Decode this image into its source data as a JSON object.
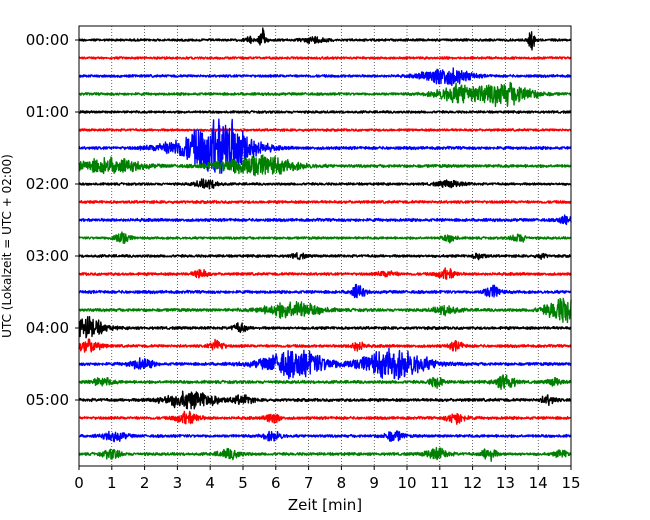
{
  "chart_data": {
    "type": "line",
    "title": "",
    "xlabel": "Zeit  [min]",
    "ylabel": "UTC (Lokalzeit = UTC + 02:00)",
    "xlim": [
      0,
      15
    ],
    "x_ticks": [
      "0",
      "1",
      "2",
      "3",
      "4",
      "5",
      "6",
      "7",
      "8",
      "9",
      "10",
      "11",
      "12",
      "13",
      "14",
      "15"
    ],
    "y_tick_labels": [
      "00:00",
      "01:00",
      "02:00",
      "03:00",
      "04:00",
      "05:00"
    ],
    "grid": "vertical dotted every minute",
    "legend": "none",
    "trace_interval_min": 15,
    "trace_colors": [
      "#000000",
      "#ff0000",
      "#0000ff",
      "#008000"
    ],
    "start_utc": "00:00",
    "traces": [
      {
        "start": "00:00",
        "color": "black",
        "noise": 1.3,
        "events": [
          {
            "t": 5.2,
            "amp": 3.5,
            "dur": 0.2
          },
          {
            "t": 5.6,
            "amp": 12,
            "dur": 0.15
          },
          {
            "t": 7.2,
            "amp": 3.5,
            "dur": 0.5
          },
          {
            "t": 13.8,
            "amp": 10,
            "dur": 0.15
          }
        ]
      },
      {
        "start": "00:15",
        "color": "red",
        "noise": 1.3,
        "events": []
      },
      {
        "start": "00:30",
        "color": "blue",
        "noise": 1.4,
        "events": [
          {
            "t": 11.2,
            "amp": 10,
            "dur": 1.0
          }
        ]
      },
      {
        "start": "00:45",
        "color": "green",
        "noise": 1.4,
        "events": [
          {
            "t": 11.6,
            "amp": 10,
            "dur": 1.0
          },
          {
            "t": 13.0,
            "amp": 12,
            "dur": 1.2
          }
        ]
      },
      {
        "start": "01:00",
        "color": "black",
        "noise": 1.3,
        "events": []
      },
      {
        "start": "01:15",
        "color": "red",
        "noise": 1.3,
        "events": []
      },
      {
        "start": "01:30",
        "color": "blue",
        "noise": 1.6,
        "events": [
          {
            "t": 4.3,
            "amp": 34,
            "dur": 1.4
          },
          {
            "t": 2.8,
            "amp": 4,
            "dur": 1.0
          }
        ]
      },
      {
        "start": "01:45",
        "color": "green",
        "noise": 1.6,
        "events": [
          {
            "t": 0.9,
            "amp": 8,
            "dur": 1.4
          },
          {
            "t": 5.4,
            "amp": 12,
            "dur": 1.6
          }
        ]
      },
      {
        "start": "02:00",
        "color": "black",
        "noise": 1.3,
        "events": [
          {
            "t": 3.9,
            "amp": 5,
            "dur": 0.5
          },
          {
            "t": 11.3,
            "amp": 3.5,
            "dur": 0.6
          }
        ]
      },
      {
        "start": "02:15",
        "color": "red",
        "noise": 1.5,
        "events": []
      },
      {
        "start": "02:30",
        "color": "blue",
        "noise": 1.6,
        "events": [
          {
            "t": 14.8,
            "amp": 4,
            "dur": 0.3
          }
        ]
      },
      {
        "start": "02:45",
        "color": "green",
        "noise": 1.3,
        "events": [
          {
            "t": 1.3,
            "amp": 7,
            "dur": 0.35
          },
          {
            "t": 11.3,
            "amp": 4,
            "dur": 0.3
          },
          {
            "t": 13.4,
            "amp": 5,
            "dur": 0.3
          }
        ]
      },
      {
        "start": "03:00",
        "color": "black",
        "noise": 1.4,
        "events": [
          {
            "t": 6.7,
            "amp": 3,
            "dur": 0.3
          },
          {
            "t": 12.2,
            "amp": 3,
            "dur": 0.3
          },
          {
            "t": 14.1,
            "amp": 3,
            "dur": 0.2
          }
        ]
      },
      {
        "start": "03:15",
        "color": "red",
        "noise": 1.5,
        "events": [
          {
            "t": 3.7,
            "amp": 5,
            "dur": 0.3
          },
          {
            "t": 11.2,
            "amp": 6,
            "dur": 0.4
          },
          {
            "t": 9.4,
            "amp": 3,
            "dur": 0.4
          }
        ]
      },
      {
        "start": "03:30",
        "color": "blue",
        "noise": 1.6,
        "events": [
          {
            "t": 8.5,
            "amp": 7,
            "dur": 0.3
          },
          {
            "t": 12.6,
            "amp": 7,
            "dur": 0.35
          }
        ]
      },
      {
        "start": "03:45",
        "color": "green",
        "noise": 1.6,
        "events": [
          {
            "t": 6.5,
            "amp": 9,
            "dur": 1.2
          },
          {
            "t": 11.2,
            "amp": 5,
            "dur": 0.5
          },
          {
            "t": 14.8,
            "amp": 14,
            "dur": 0.8
          }
        ]
      },
      {
        "start": "04:00",
        "color": "black",
        "noise": 1.5,
        "events": [
          {
            "t": 0.2,
            "amp": 12,
            "dur": 0.8
          },
          {
            "t": 4.9,
            "amp": 5,
            "dur": 0.3
          }
        ]
      },
      {
        "start": "04:15",
        "color": "red",
        "noise": 1.5,
        "events": [
          {
            "t": 0.3,
            "amp": 7,
            "dur": 0.5
          },
          {
            "t": 4.2,
            "amp": 7,
            "dur": 0.3
          },
          {
            "t": 8.5,
            "amp": 5,
            "dur": 0.3
          },
          {
            "t": 11.5,
            "amp": 5,
            "dur": 0.3
          }
        ]
      },
      {
        "start": "04:30",
        "color": "blue",
        "noise": 1.6,
        "events": [
          {
            "t": 1.9,
            "amp": 6,
            "dur": 0.5
          },
          {
            "t": 6.6,
            "amp": 15,
            "dur": 1.4
          },
          {
            "t": 9.6,
            "amp": 16,
            "dur": 1.5
          }
        ]
      },
      {
        "start": "04:45",
        "color": "green",
        "noise": 1.6,
        "events": [
          {
            "t": 0.7,
            "amp": 4,
            "dur": 0.5
          },
          {
            "t": 10.9,
            "amp": 6,
            "dur": 0.3
          },
          {
            "t": 13.0,
            "amp": 9,
            "dur": 0.4
          },
          {
            "t": 14.5,
            "amp": 4,
            "dur": 0.3
          }
        ]
      },
      {
        "start": "05:00",
        "color": "black",
        "noise": 1.6,
        "events": [
          {
            "t": 3.4,
            "amp": 9,
            "dur": 1.2
          },
          {
            "t": 5.0,
            "amp": 5,
            "dur": 0.4
          },
          {
            "t": 14.3,
            "amp": 5,
            "dur": 0.3
          }
        ]
      },
      {
        "start": "05:15",
        "color": "red",
        "noise": 1.5,
        "events": [
          {
            "t": 3.3,
            "amp": 7,
            "dur": 0.5
          },
          {
            "t": 5.9,
            "amp": 6,
            "dur": 0.3
          },
          {
            "t": 11.5,
            "amp": 6,
            "dur": 0.4
          }
        ]
      },
      {
        "start": "05:30",
        "color": "blue",
        "noise": 1.5,
        "events": [
          {
            "t": 1.1,
            "amp": 5,
            "dur": 0.5
          },
          {
            "t": 5.9,
            "amp": 5,
            "dur": 0.4
          },
          {
            "t": 9.6,
            "amp": 6,
            "dur": 0.4
          }
        ]
      },
      {
        "start": "05:45",
        "color": "green",
        "noise": 1.5,
        "events": [
          {
            "t": 1.0,
            "amp": 5,
            "dur": 0.4
          },
          {
            "t": 4.6,
            "amp": 5,
            "dur": 0.5
          },
          {
            "t": 10.9,
            "amp": 6,
            "dur": 0.5
          },
          {
            "t": 12.5,
            "amp": 8,
            "dur": 0.3
          },
          {
            "t": 14.7,
            "amp": 4,
            "dur": 0.3
          }
        ]
      }
    ]
  }
}
